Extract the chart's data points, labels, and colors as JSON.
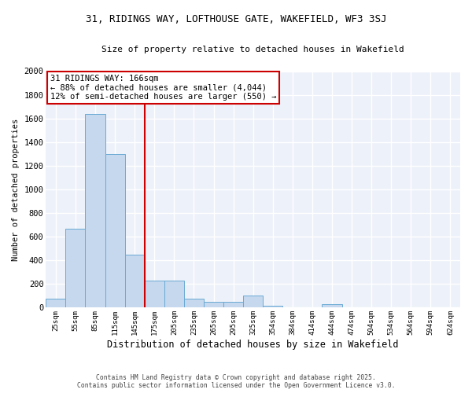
{
  "title_line1": "31, RIDINGS WAY, LOFTHOUSE GATE, WAKEFIELD, WF3 3SJ",
  "title_line2": "Size of property relative to detached houses in Wakefield",
  "xlabel": "Distribution of detached houses by size in Wakefield",
  "ylabel": "Number of detached properties",
  "categories": [
    "25sqm",
    "55sqm",
    "85sqm",
    "115sqm",
    "145sqm",
    "175sqm",
    "205sqm",
    "235sqm",
    "265sqm",
    "295sqm",
    "325sqm",
    "354sqm",
    "384sqm",
    "414sqm",
    "444sqm",
    "474sqm",
    "504sqm",
    "534sqm",
    "564sqm",
    "594sqm",
    "624sqm"
  ],
  "values": [
    75,
    670,
    1640,
    1300,
    450,
    230,
    230,
    75,
    50,
    50,
    100,
    15,
    5,
    5,
    30,
    3,
    3,
    3,
    3,
    3,
    3
  ],
  "bar_color": "#c5d8ee",
  "bar_edge_color": "#6aaad4",
  "vline_x": 4.5,
  "vline_color": "#cc0000",
  "annotation_text": "31 RIDINGS WAY: 166sqm\n← 88% of detached houses are smaller (4,044)\n12% of semi-detached houses are larger (550) →",
  "annotation_box_color": "#cc0000",
  "ylim": [
    0,
    2000
  ],
  "yticks": [
    0,
    200,
    400,
    600,
    800,
    1000,
    1200,
    1400,
    1600,
    1800,
    2000
  ],
  "bg_color": "#edf1f9",
  "grid_color": "#ffffff",
  "footer_line1": "Contains HM Land Registry data © Crown copyright and database right 2025.",
  "footer_line2": "Contains public sector information licensed under the Open Government Licence v3.0."
}
